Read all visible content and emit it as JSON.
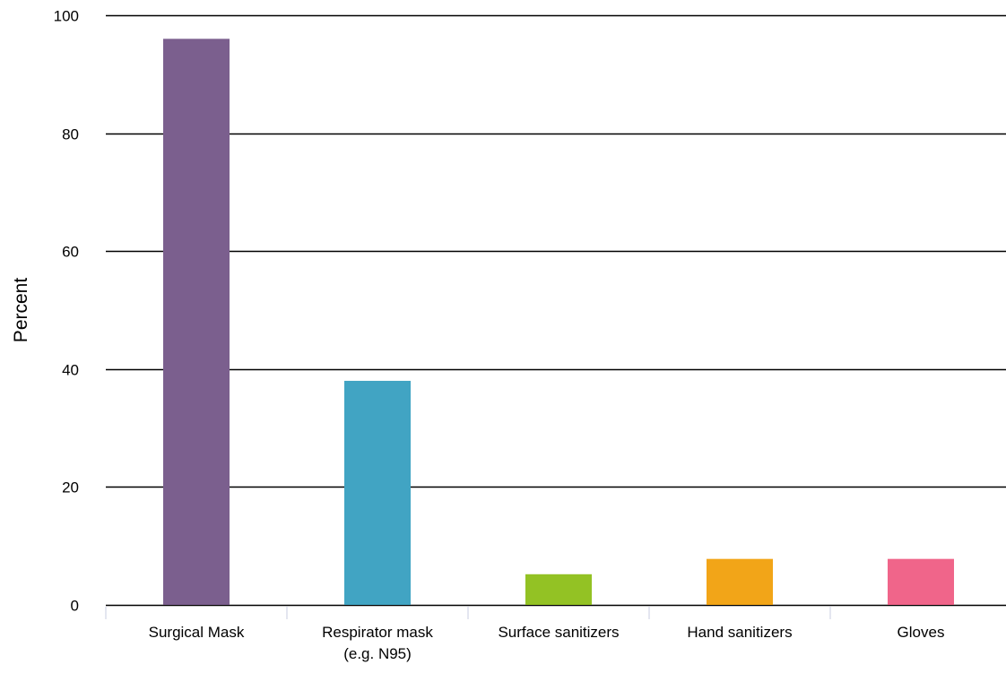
{
  "chart_data": {
    "type": "bar",
    "title": "",
    "xlabel": "",
    "ylabel": "Percent",
    "ylim": [
      0,
      100
    ],
    "yticks": [
      0,
      20,
      40,
      60,
      80,
      100
    ],
    "grid": true,
    "categories": [
      [
        "Surgical Mask"
      ],
      [
        "Respirator mask",
        "(e.g. N95)"
      ],
      [
        "Surface sanitizers"
      ],
      [
        "Hand sanitizers"
      ],
      [
        "Gloves"
      ]
    ],
    "values": [
      96,
      38,
      5.2,
      7.8,
      7.8
    ],
    "colors": [
      "#7b5f8e",
      "#41a4c3",
      "#93c224",
      "#f2a518",
      "#f0658a"
    ]
  }
}
